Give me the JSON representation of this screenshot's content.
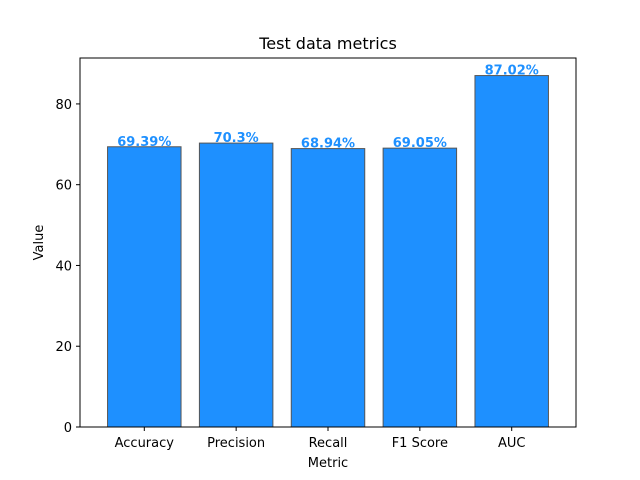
{
  "chart_data": {
    "type": "bar",
    "title": "Test data metrics",
    "xlabel": "Metric",
    "ylabel": "Value",
    "categories": [
      "Accuracy",
      "Precision",
      "Recall",
      "F1 Score",
      "AUC"
    ],
    "values": [
      69.39,
      70.3,
      68.94,
      69.05,
      87.02
    ],
    "data_labels": [
      "69.39%",
      "70.3%",
      "68.94%",
      "69.05%",
      "87.02%"
    ],
    "ylim": [
      0,
      91.37
    ],
    "yticks": [
      0,
      20,
      40,
      60,
      80
    ],
    "grid": false,
    "legend": "none",
    "colors": {
      "bar_fill": "#1e90ff",
      "bar_edge": "#555555",
      "data_label": "#1e90ff",
      "axis": "#000000"
    }
  }
}
